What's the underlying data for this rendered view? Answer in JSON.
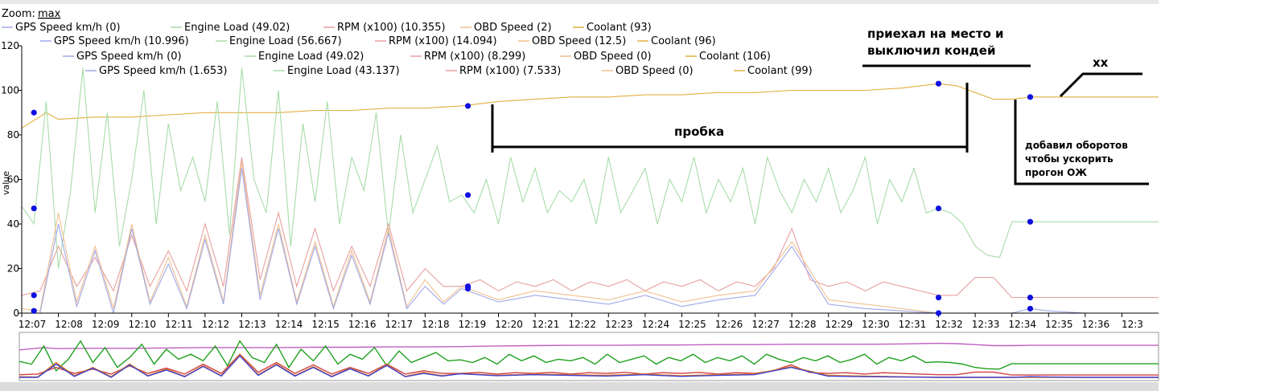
{
  "zoom": {
    "label": "Zoom:",
    "value": "max"
  },
  "colors": {
    "gps": "#a0a8e8",
    "engine": "#a8dca8",
    "rpm": "#e8a0a0",
    "obd": "#f0c090",
    "coolant": "#e0b040",
    "marker": "#1010e0",
    "nav_engine": "#20a020",
    "nav_rpm": "#d04040",
    "nav_obd": "#e08020",
    "nav_gps": "#4040d0",
    "nav_coolant": "#c060c0"
  },
  "legend_rows": [
    [
      "GPS Speed km/h (0)",
      "Engine Load (49.02)",
      "RPM (x100) (10.355)",
      "OBD Speed (2)",
      "Coolant (93)"
    ],
    [
      "GPS Speed km/h (10.996)",
      "Engine Load (56.667)",
      "RPM (x100) (14.094)",
      "OBD Speed (12.5)",
      "Coolant (96)"
    ],
    [
      "GPS Speed km/h (0)",
      "Engine Load (49.02)",
      "RPM (x100) (8.299)",
      "OBD Speed (0)",
      "Coolant (106)"
    ],
    [
      "GPS Speed km/h (1.653)",
      "Engine Load (43.137)",
      "RPM (x100) (7.533)",
      "OBD Speed (0)",
      "Coolant (99)"
    ]
  ],
  "annotations": {
    "arrived": [
      "приехал на место и",
      "выключил кондей"
    ],
    "traffic": "пробка",
    "idle": "хх",
    "revs": [
      "добавил оборотов",
      "чтобы ускорить",
      "прогон ОЖ"
    ]
  },
  "chart_data": {
    "type": "line",
    "ylabel": "value",
    "ylim": [
      0,
      120
    ],
    "yticks": [
      "0",
      "20",
      "40",
      "60",
      "80",
      "100",
      "120"
    ],
    "x_range_min": [
      7.0,
      38.0
    ],
    "xticks": [
      "12:07",
      "12:08",
      "12:09",
      "12:10",
      "12:11",
      "12:12",
      "12:13",
      "12:14",
      "12:15",
      "12:16",
      "12:17",
      "12:18",
      "12:19",
      "12:20",
      "12:21",
      "12:22",
      "12:23",
      "12:24",
      "12:25",
      "12:26",
      "12:27",
      "12:28",
      "12:29",
      "12:30",
      "12:31",
      "12:32",
      "12:33",
      "12:34",
      "12:35",
      "12:36",
      "12:3"
    ],
    "grid": false,
    "legend_placement": "top",
    "series": [
      {
        "name": "Coolant",
        "x": [
          "12:07:00",
          "12:07:40",
          "12:08:00",
          "12:09:00",
          "12:10:00",
          "12:11:00",
          "12:12:00",
          "12:13:00",
          "12:14:00",
          "12:15:00",
          "12:16:00",
          "12:17:00",
          "12:18:00",
          "12:19:00",
          "12:20:00",
          "12:21:00",
          "12:22:00",
          "12:23:00",
          "12:24:00",
          "12:25:00",
          "12:26:00",
          "12:27:00",
          "12:28:00",
          "12:29:00",
          "12:30:00",
          "12:31:00",
          "12:32:00",
          "12:32:30",
          "12:33:00",
          "12:33:30",
          "12:34:00",
          "12:34:30",
          "12:35:00",
          "12:36:00",
          "12:37:00",
          "12:38:00"
        ],
        "values": [
          83,
          90,
          87,
          88,
          88,
          89,
          90,
          90,
          90,
          91,
          91,
          92,
          92,
          93,
          95,
          96,
          97,
          97,
          98,
          98,
          99,
          99,
          100,
          100,
          100,
          101,
          103,
          102,
          99,
          96,
          96,
          97,
          97,
          97,
          97,
          97
        ]
      },
      {
        "name": "Engine Load",
        "x": [
          "12:07:00",
          "12:07:20",
          "12:07:40",
          "12:08:00",
          "12:08:20",
          "12:08:40",
          "12:09:00",
          "12:09:20",
          "12:09:40",
          "12:10:00",
          "12:10:20",
          "12:10:40",
          "12:11:00",
          "12:11:20",
          "12:11:40",
          "12:12:00",
          "12:12:20",
          "12:12:40",
          "12:13:00",
          "12:13:20",
          "12:13:40",
          "12:14:00",
          "12:14:20",
          "12:14:40",
          "12:15:00",
          "12:15:20",
          "12:15:40",
          "12:16:00",
          "12:16:20",
          "12:16:40",
          "12:17:00",
          "12:17:20",
          "12:17:40",
          "12:18:00",
          "12:18:20",
          "12:18:40",
          "12:19:00",
          "12:19:20",
          "12:19:40",
          "12:20:00",
          "12:20:20",
          "12:20:40",
          "12:21:00",
          "12:21:20",
          "12:21:40",
          "12:22:00",
          "12:22:20",
          "12:22:40",
          "12:23:00",
          "12:23:20",
          "12:23:40",
          "12:24:00",
          "12:24:20",
          "12:24:40",
          "12:25:00",
          "12:25:20",
          "12:25:40",
          "12:26:00",
          "12:26:20",
          "12:26:40",
          "12:27:00",
          "12:27:20",
          "12:27:40",
          "12:28:00",
          "12:28:20",
          "12:28:40",
          "12:29:00",
          "12:29:20",
          "12:29:40",
          "12:30:00",
          "12:30:20",
          "12:30:40",
          "12:31:00",
          "12:31:20",
          "12:31:40",
          "12:32:00",
          "12:32:20",
          "12:32:40",
          "12:33:00",
          "12:33:20",
          "12:33:40",
          "12:34:00",
          "12:34:30",
          "12:35:00",
          "12:36:00",
          "12:37:00",
          "12:38:00"
        ],
        "values": [
          48,
          40,
          95,
          20,
          55,
          110,
          45,
          90,
          30,
          60,
          100,
          40,
          85,
          55,
          70,
          50,
          95,
          35,
          110,
          60,
          45,
          100,
          30,
          85,
          50,
          95,
          40,
          70,
          55,
          90,
          35,
          80,
          45,
          60,
          75,
          50,
          53,
          45,
          60,
          40,
          70,
          50,
          65,
          45,
          55,
          50,
          60,
          40,
          70,
          45,
          55,
          65,
          40,
          60,
          50,
          70,
          45,
          60,
          50,
          65,
          40,
          70,
          55,
          45,
          60,
          50,
          65,
          45,
          55,
          70,
          40,
          60,
          50,
          65,
          45,
          47,
          45,
          40,
          30,
          26,
          25,
          41,
          41,
          41,
          41,
          41,
          41
        ]
      },
      {
        "name": "RPM (x100)",
        "x": [
          "12:07:00",
          "12:07:30",
          "12:08:00",
          "12:08:30",
          "12:09:00",
          "12:09:30",
          "12:10:00",
          "12:10:30",
          "12:11:00",
          "12:11:30",
          "12:12:00",
          "12:12:30",
          "12:13:00",
          "12:13:30",
          "12:14:00",
          "12:14:30",
          "12:15:00",
          "12:15:30",
          "12:16:00",
          "12:16:30",
          "12:17:00",
          "12:17:30",
          "12:18:00",
          "12:18:30",
          "12:19:00",
          "12:19:30",
          "12:20:00",
          "12:20:30",
          "12:21:00",
          "12:21:30",
          "12:22:00",
          "12:22:30",
          "12:23:00",
          "12:23:30",
          "12:24:00",
          "12:24:30",
          "12:25:00",
          "12:25:30",
          "12:26:00",
          "12:26:30",
          "12:27:00",
          "12:27:30",
          "12:28:00",
          "12:28:30",
          "12:29:00",
          "12:29:30",
          "12:30:00",
          "12:30:30",
          "12:31:00",
          "12:31:30",
          "12:32:00",
          "12:32:30",
          "12:33:00",
          "12:33:30",
          "12:34:00",
          "12:34:30",
          "12:35:00",
          "12:36:00",
          "12:37:00",
          "12:38:00"
        ],
        "values": [
          8,
          10,
          30,
          12,
          25,
          10,
          35,
          12,
          28,
          10,
          40,
          12,
          70,
          15,
          45,
          12,
          38,
          10,
          30,
          12,
          40,
          10,
          20,
          12,
          12,
          15,
          10,
          14,
          12,
          15,
          10,
          14,
          12,
          15,
          10,
          14,
          12,
          15,
          10,
          14,
          12,
          20,
          38,
          15,
          12,
          14,
          10,
          14,
          12,
          10,
          8,
          8,
          16,
          16,
          7,
          7,
          7,
          7,
          7,
          7
        ]
      },
      {
        "name": "OBD Speed",
        "x": [
          "12:07:00",
          "12:07:30",
          "12:08:00",
          "12:08:30",
          "12:09:00",
          "12:09:30",
          "12:10:00",
          "12:10:30",
          "12:11:00",
          "12:11:30",
          "12:12:00",
          "12:12:30",
          "12:13:00",
          "12:13:30",
          "12:14:00",
          "12:14:30",
          "12:15:00",
          "12:15:30",
          "12:16:00",
          "12:16:30",
          "12:17:00",
          "12:17:30",
          "12:18:00",
          "12:18:30",
          "12:19:00",
          "12:20:00",
          "12:21:00",
          "12:22:00",
          "12:23:00",
          "12:24:00",
          "12:25:00",
          "12:26:00",
          "12:27:00",
          "12:28:00",
          "12:29:00",
          "12:30:00",
          "12:31:00",
          "12:32:00",
          "12:33:00",
          "12:34:00",
          "12:35:00",
          "12:36:00",
          "12:37:00",
          "12:38:00"
        ],
        "values": [
          2,
          1,
          45,
          5,
          30,
          2,
          40,
          5,
          25,
          3,
          35,
          5,
          68,
          8,
          40,
          5,
          32,
          3,
          28,
          5,
          38,
          3,
          15,
          5,
          12,
          6,
          10,
          8,
          6,
          10,
          5,
          8,
          10,
          32,
          6,
          4,
          2,
          0,
          0,
          0,
          0,
          0,
          0,
          0
        ]
      },
      {
        "name": "GPS Speed km/h",
        "x": [
          "12:07:00",
          "12:07:30",
          "12:08:00",
          "12:08:30",
          "12:09:00",
          "12:09:30",
          "12:10:00",
          "12:10:30",
          "12:11:00",
          "12:11:30",
          "12:12:00",
          "12:12:30",
          "12:13:00",
          "12:13:30",
          "12:14:00",
          "12:14:30",
          "12:15:00",
          "12:15:30",
          "12:16:00",
          "12:16:30",
          "12:17:00",
          "12:17:30",
          "12:18:00",
          "12:18:30",
          "12:19:00",
          "12:20:00",
          "12:21:00",
          "12:22:00",
          "12:23:00",
          "12:24:00",
          "12:25:00",
          "12:26:00",
          "12:27:00",
          "12:28:00",
          "12:29:00",
          "12:30:00",
          "12:31:00",
          "12:32:00",
          "12:33:00",
          "12:34:00",
          "12:34:30",
          "12:35:00",
          "12:36:00",
          "12:37:00",
          "12:38:00"
        ],
        "values": [
          0,
          0,
          40,
          3,
          28,
          0,
          38,
          4,
          22,
          2,
          33,
          4,
          65,
          6,
          38,
          4,
          30,
          2,
          26,
          4,
          36,
          2,
          12,
          4,
          11,
          5,
          8,
          6,
          4,
          8,
          3,
          6,
          8,
          30,
          4,
          2,
          1,
          0,
          0,
          0,
          2,
          1,
          0,
          0,
          0
        ]
      }
    ],
    "markers": [
      {
        "x": "12:07:20",
        "y": 90
      },
      {
        "x": "12:07:20",
        "y": 47
      },
      {
        "x": "12:07:20",
        "y": 8
      },
      {
        "x": "12:07:20",
        "y": 1
      },
      {
        "x": "12:19:10",
        "y": 93
      },
      {
        "x": "12:19:10",
        "y": 53
      },
      {
        "x": "12:19:10",
        "y": 12
      },
      {
        "x": "12:19:10",
        "y": 11
      },
      {
        "x": "12:32:00",
        "y": 103
      },
      {
        "x": "12:32:00",
        "y": 47
      },
      {
        "x": "12:32:00",
        "y": 7
      },
      {
        "x": "12:32:00",
        "y": 0
      },
      {
        "x": "12:34:30",
        "y": 97
      },
      {
        "x": "12:34:30",
        "y": 41
      },
      {
        "x": "12:34:30",
        "y": 7
      },
      {
        "x": "12:34:30",
        "y": 2
      }
    ]
  }
}
